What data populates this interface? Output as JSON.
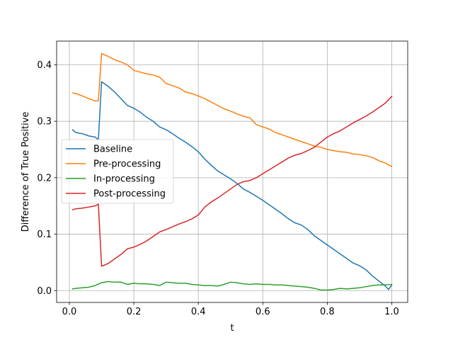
{
  "chart_data": {
    "type": "line",
    "title": "",
    "xlabel": "t",
    "ylabel": "Difference of True Positive",
    "xlim": [
      -0.0395,
      1.0495
    ],
    "ylim": [
      -0.021,
      0.442
    ],
    "xticks": [
      0.0,
      0.2,
      0.4,
      0.6,
      0.8,
      1.0
    ],
    "xtick_labels": [
      "0.0",
      "0.2",
      "0.4",
      "0.6",
      "0.8",
      "1.0"
    ],
    "yticks": [
      0.0,
      0.1,
      0.2,
      0.3,
      0.4
    ],
    "ytick_labels": [
      "0.0",
      "0.1",
      "0.2",
      "0.3",
      "0.4"
    ],
    "grid": true,
    "legend_position": "center-left",
    "series": [
      {
        "name": "Baseline",
        "color": "#1f77b4",
        "x": [
          0.01,
          0.02,
          0.04,
          0.06,
          0.08,
          0.09,
          0.1,
          0.12,
          0.14,
          0.16,
          0.18,
          0.2,
          0.22,
          0.24,
          0.26,
          0.28,
          0.3,
          0.32,
          0.34,
          0.36,
          0.38,
          0.4,
          0.42,
          0.44,
          0.46,
          0.48,
          0.5,
          0.52,
          0.54,
          0.56,
          0.58,
          0.6,
          0.62,
          0.64,
          0.66,
          0.68,
          0.7,
          0.72,
          0.74,
          0.76,
          0.78,
          0.8,
          0.82,
          0.84,
          0.86,
          0.88,
          0.9,
          0.92,
          0.94,
          0.96,
          0.98,
          0.99,
          1.0
        ],
        "y": [
          0.285,
          0.28,
          0.278,
          0.274,
          0.272,
          0.267,
          0.37,
          0.362,
          0.352,
          0.34,
          0.328,
          0.323,
          0.316,
          0.307,
          0.3,
          0.29,
          0.285,
          0.278,
          0.27,
          0.263,
          0.255,
          0.246,
          0.233,
          0.222,
          0.212,
          0.205,
          0.198,
          0.19,
          0.18,
          0.174,
          0.167,
          0.16,
          0.152,
          0.144,
          0.136,
          0.127,
          0.12,
          0.116,
          0.108,
          0.097,
          0.089,
          0.081,
          0.073,
          0.065,
          0.057,
          0.049,
          0.044,
          0.037,
          0.026,
          0.017,
          0.008,
          0.002,
          0.01
        ]
      },
      {
        "name": "Pre-processing",
        "color": "#ff7f0e",
        "x": [
          0.01,
          0.02,
          0.04,
          0.06,
          0.08,
          0.09,
          0.1,
          0.12,
          0.14,
          0.16,
          0.18,
          0.2,
          0.22,
          0.24,
          0.26,
          0.28,
          0.3,
          0.32,
          0.34,
          0.36,
          0.38,
          0.4,
          0.42,
          0.44,
          0.46,
          0.48,
          0.5,
          0.52,
          0.54,
          0.56,
          0.58,
          0.6,
          0.62,
          0.64,
          0.66,
          0.68,
          0.7,
          0.72,
          0.74,
          0.76,
          0.78,
          0.8,
          0.82,
          0.84,
          0.86,
          0.88,
          0.9,
          0.92,
          0.94,
          0.96,
          0.98,
          1.0
        ],
        "y": [
          0.35,
          0.349,
          0.345,
          0.34,
          0.336,
          0.336,
          0.42,
          0.415,
          0.409,
          0.405,
          0.4,
          0.39,
          0.387,
          0.384,
          0.382,
          0.378,
          0.367,
          0.363,
          0.359,
          0.352,
          0.349,
          0.345,
          0.34,
          0.334,
          0.328,
          0.322,
          0.318,
          0.313,
          0.309,
          0.306,
          0.294,
          0.29,
          0.286,
          0.28,
          0.276,
          0.272,
          0.268,
          0.264,
          0.26,
          0.256,
          0.254,
          0.25,
          0.248,
          0.246,
          0.245,
          0.242,
          0.241,
          0.239,
          0.236,
          0.23,
          0.226,
          0.22
        ]
      },
      {
        "name": "In-processing",
        "color": "#2ca02c",
        "x": [
          0.01,
          0.02,
          0.04,
          0.06,
          0.08,
          0.1,
          0.12,
          0.14,
          0.16,
          0.18,
          0.2,
          0.22,
          0.24,
          0.26,
          0.28,
          0.3,
          0.32,
          0.34,
          0.36,
          0.38,
          0.4,
          0.42,
          0.44,
          0.46,
          0.48,
          0.5,
          0.52,
          0.54,
          0.56,
          0.58,
          0.6,
          0.62,
          0.64,
          0.66,
          0.68,
          0.7,
          0.72,
          0.74,
          0.76,
          0.78,
          0.8,
          0.82,
          0.84,
          0.86,
          0.88,
          0.9,
          0.92,
          0.94,
          0.96,
          0.98,
          1.0
        ],
        "y": [
          0.003,
          0.004,
          0.005,
          0.006,
          0.009,
          0.014,
          0.016,
          0.015,
          0.015,
          0.011,
          0.013,
          0.012,
          0.012,
          0.011,
          0.009,
          0.015,
          0.014,
          0.013,
          0.013,
          0.011,
          0.01,
          0.009,
          0.009,
          0.008,
          0.011,
          0.015,
          0.014,
          0.012,
          0.011,
          0.012,
          0.011,
          0.011,
          0.01,
          0.01,
          0.009,
          0.008,
          0.007,
          0.006,
          0.004,
          0.001,
          0.001,
          0.002,
          0.004,
          0.003,
          0.004,
          0.005,
          0.007,
          0.009,
          0.01,
          0.01,
          0.011
        ]
      },
      {
        "name": "Post-processing",
        "color": "#d62728",
        "x": [
          0.01,
          0.02,
          0.04,
          0.06,
          0.08,
          0.09,
          0.1,
          0.12,
          0.14,
          0.16,
          0.18,
          0.2,
          0.22,
          0.24,
          0.26,
          0.28,
          0.3,
          0.32,
          0.34,
          0.36,
          0.38,
          0.4,
          0.42,
          0.44,
          0.46,
          0.48,
          0.5,
          0.52,
          0.54,
          0.56,
          0.58,
          0.6,
          0.62,
          0.64,
          0.66,
          0.68,
          0.7,
          0.72,
          0.74,
          0.76,
          0.78,
          0.8,
          0.82,
          0.84,
          0.86,
          0.88,
          0.9,
          0.92,
          0.94,
          0.96,
          0.98,
          1.0
        ],
        "y": [
          0.143,
          0.145,
          0.146,
          0.148,
          0.15,
          0.153,
          0.043,
          0.048,
          0.056,
          0.064,
          0.074,
          0.077,
          0.082,
          0.088,
          0.096,
          0.104,
          0.108,
          0.113,
          0.118,
          0.122,
          0.127,
          0.134,
          0.148,
          0.157,
          0.164,
          0.172,
          0.18,
          0.188,
          0.193,
          0.195,
          0.2,
          0.207,
          0.214,
          0.221,
          0.228,
          0.235,
          0.24,
          0.243,
          0.248,
          0.254,
          0.263,
          0.272,
          0.278,
          0.283,
          0.29,
          0.297,
          0.303,
          0.309,
          0.316,
          0.324,
          0.332,
          0.344
        ]
      }
    ]
  }
}
